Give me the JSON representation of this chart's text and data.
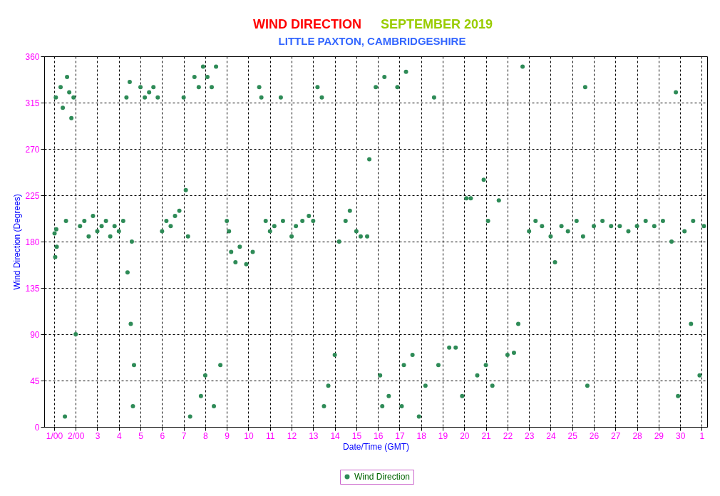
{
  "chart_data": {
    "type": "scatter",
    "title": "WIND DIRECTION",
    "subtitle": "LITTLE PAXTON, CAMBRIDGESHIRE",
    "annotations": [
      "SEPTEMBER 2019"
    ],
    "xlabel": "Date/Time (GMT)",
    "ylabel": "Wind Direction (Degrees)",
    "x": [
      "2019-09-01T00:29",
      "2019-09-01T01:12",
      "2019-09-01T01:55",
      "2019-09-01T02:24",
      "2019-09-01T02:53",
      "2019-09-01T07:12",
      "2019-09-01T09:36",
      "2019-09-01T12:00",
      "2019-09-01T14:24",
      "2019-09-01T16:48",
      "2019-09-01T19:12",
      "2019-09-01T13:12",
      "2019-09-01T21:36",
      "2019-09-02T00:00",
      "2019-09-02T04:48",
      "2019-09-02T09:36",
      "2019-09-02T14:24",
      "2019-09-02T19:12",
      "2019-09-03T00:00",
      "2019-09-03T04:48",
      "2019-09-03T09:36",
      "2019-09-03T14:24",
      "2019-09-03T19:12",
      "2019-09-04T00:00",
      "2019-09-04T04:48",
      "2019-09-04T08:24",
      "2019-09-04T09:36",
      "2019-09-04T12:00",
      "2019-09-04T13:12",
      "2019-09-04T14:24",
      "2019-09-04T15:36",
      "2019-09-04T16:48",
      "2019-09-05T00:00",
      "2019-09-05T04:48",
      "2019-09-05T09:36",
      "2019-09-05T14:24",
      "2019-09-05T19:12",
      "2019-09-06T00:00",
      "2019-09-06T04:48",
      "2019-09-06T09:36",
      "2019-09-06T14:24",
      "2019-09-06T19:12",
      "2019-09-07T00:00",
      "2019-09-07T02:24",
      "2019-09-07T04:48",
      "2019-09-07T07:12",
      "2019-09-07T12:00",
      "2019-09-07T16:48",
      "2019-09-07T21:36",
      "2019-09-08T02:24",
      "2019-09-08T07:12",
      "2019-09-08T12:00",
      "2019-09-07T19:12",
      "2019-09-08T00:00",
      "2019-09-08T09:36",
      "2019-09-08T16:48",
      "2019-09-09T00:00",
      "2019-09-09T02:24",
      "2019-09-09T04:48",
      "2019-09-09T09:36",
      "2019-09-09T14:24",
      "2019-09-09T21:36",
      "2019-09-10T04:48",
      "2019-09-10T12:00",
      "2019-09-10T14:24",
      "2019-09-10T19:12",
      "2019-09-11T00:00",
      "2019-09-11T04:48",
      "2019-09-11T12:00",
      "2019-09-11T14:24",
      "2019-09-12T00:00",
      "2019-09-12T04:48",
      "2019-09-12T12:00",
      "2019-09-12T19:12",
      "2019-09-13T00:00",
      "2019-09-13T04:48",
      "2019-09-13T09:36",
      "2019-09-13T12:00",
      "2019-09-13T16:48",
      "2019-09-14T00:00",
      "2019-09-14T04:48",
      "2019-09-14T12:00",
      "2019-09-14T16:48",
      "2019-09-15T00:00",
      "2019-09-15T04:48",
      "2019-09-15T12:00",
      "2019-09-15T14:24",
      "2019-09-15T21:36",
      "2019-09-16T02:24",
      "2019-09-16T07:12",
      "2019-09-16T04:48",
      "2019-09-16T12:00",
      "2019-09-16T21:36",
      "2019-09-17T02:24",
      "2019-09-17T07:12",
      "2019-09-17T04:48",
      "2019-09-17T14:24",
      "2019-09-17T21:36",
      "2019-09-18T04:48",
      "2019-09-18T14:24",
      "2019-09-18T19:12",
      "2019-09-19T07:12",
      "2019-09-19T14:24",
      "2019-09-19T21:36",
      "2019-09-20T02:24",
      "2019-09-20T07:12",
      "2019-09-20T14:24",
      "2019-09-20T21:36",
      "2019-09-21T00:00",
      "2019-09-21T02:24",
      "2019-09-21T07:12",
      "2019-09-21T14:24",
      "2019-09-22T00:00",
      "2019-09-22T07:12",
      "2019-09-22T12:00",
      "2019-09-22T16:48",
      "2019-09-23T00:00",
      "2019-09-23T07:12",
      "2019-09-23T14:24",
      "2019-09-24T00:00",
      "2019-09-24T04:48",
      "2019-09-24T12:00",
      "2019-09-24T19:12",
      "2019-09-25T04:48",
      "2019-09-25T12:00",
      "2019-09-25T14:24",
      "2019-09-25T16:48",
      "2019-09-26T00:00",
      "2019-09-26T09:36",
      "2019-09-26T19:12",
      "2019-09-27T04:48",
      "2019-09-27T14:24",
      "2019-09-28T00:00",
      "2019-09-28T09:36",
      "2019-09-28T19:12",
      "2019-09-29T04:48",
      "2019-09-29T14:24",
      "2019-09-29T19:12",
      "2019-09-29T21:36",
      "2019-09-30T04:48",
      "2019-09-30T12:00",
      "2019-09-30T14:24",
      "2019-09-30T21:36",
      "2019-10-01T02:24"
    ],
    "series": [
      {
        "name": "Wind Direction",
        "color": "#2e8b57",
        "values": [
          188,
          165,
          320,
          192,
          175,
          330,
          310,
          10,
          340,
          325,
          300,
          200,
          320,
          90,
          195,
          200,
          185,
          205,
          190,
          195,
          200,
          185,
          195,
          190,
          200,
          320,
          150,
          335,
          100,
          180,
          20,
          60,
          330,
          320,
          325,
          330,
          320,
          190,
          200,
          195,
          205,
          210,
          320,
          230,
          185,
          10,
          340,
          330,
          350,
          340,
          330,
          350,
          30,
          50,
          20,
          60,
          200,
          190,
          170,
          160,
          175,
          158,
          170,
          330,
          320,
          200,
          190,
          195,
          320,
          200,
          185,
          195,
          200,
          205,
          200,
          330,
          320,
          20,
          40,
          70,
          180,
          200,
          210,
          190,
          185,
          185,
          260,
          330,
          50,
          340,
          20,
          30,
          330,
          20,
          345,
          60,
          70,
          10,
          40,
          320,
          60,
          77,
          77,
          30,
          222,
          222,
          50,
          240,
          60,
          200,
          40,
          220,
          70,
          72,
          100,
          350,
          190,
          200,
          195,
          185,
          160,
          195,
          190,
          200,
          185,
          330,
          40,
          195,
          200,
          195,
          195,
          190,
          195,
          200,
          195,
          200,
          180,
          325,
          30,
          190,
          100,
          200,
          50,
          195
        ]
      }
    ],
    "xlim": [
      "2019-08-31T12:58",
      "2019-10-01T06:00"
    ],
    "xticks": [
      {
        "value": "2019-09-01",
        "label": "1/00"
      },
      {
        "value": "2019-09-02",
        "label": "2/00"
      },
      {
        "value": "2019-09-03",
        "label": "3"
      },
      {
        "value": "2019-09-04",
        "label": "4"
      },
      {
        "value": "2019-09-05",
        "label": "5"
      },
      {
        "value": "2019-09-06",
        "label": "6"
      },
      {
        "value": "2019-09-07",
        "label": "7"
      },
      {
        "value": "2019-09-08",
        "label": "8"
      },
      {
        "value": "2019-09-09",
        "label": "9"
      },
      {
        "value": "2019-09-10",
        "label": "10"
      },
      {
        "value": "2019-09-11",
        "label": "11"
      },
      {
        "value": "2019-09-12",
        "label": "12"
      },
      {
        "value": "2019-09-13",
        "label": "13"
      },
      {
        "value": "2019-09-14",
        "label": "14"
      },
      {
        "value": "2019-09-15",
        "label": "15"
      },
      {
        "value": "2019-09-16",
        "label": "16"
      },
      {
        "value": "2019-09-17",
        "label": "17"
      },
      {
        "value": "2019-09-18",
        "label": "18"
      },
      {
        "value": "2019-09-19",
        "label": "19"
      },
      {
        "value": "2019-09-20",
        "label": "20"
      },
      {
        "value": "2019-09-21",
        "label": "21"
      },
      {
        "value": "2019-09-22",
        "label": "22"
      },
      {
        "value": "2019-09-23",
        "label": "23"
      },
      {
        "value": "2019-09-24",
        "label": "24"
      },
      {
        "value": "2019-09-25",
        "label": "25"
      },
      {
        "value": "2019-09-26",
        "label": "26"
      },
      {
        "value": "2019-09-27",
        "label": "27"
      },
      {
        "value": "2019-09-28",
        "label": "28"
      },
      {
        "value": "2019-09-29",
        "label": "29"
      },
      {
        "value": "2019-09-30",
        "label": "30"
      },
      {
        "value": "2019-10-01",
        "label": "1"
      }
    ],
    "ylim": [
      0,
      360
    ],
    "yticks": [
      0,
      45,
      90,
      135,
      180,
      225,
      270,
      315,
      360
    ],
    "grid": true,
    "legend": "bottom",
    "marker": "circle"
  }
}
